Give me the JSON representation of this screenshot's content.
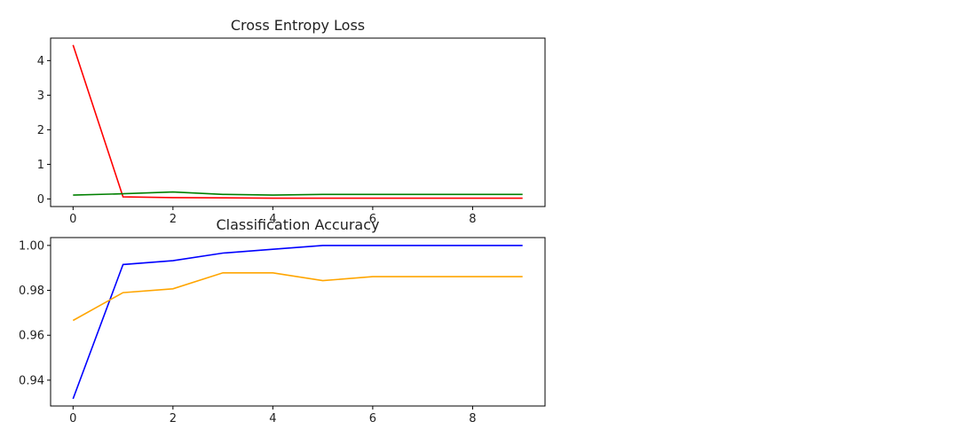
{
  "chart_data": [
    {
      "type": "line",
      "title": "Cross Entropy Loss",
      "xlabel": "",
      "ylabel": "",
      "x": [
        0,
        1,
        2,
        3,
        4,
        5,
        6,
        7,
        8,
        9
      ],
      "xlim": [
        -0.45,
        9.45
      ],
      "ylim": [
        -0.22,
        4.65
      ],
      "xticks": [
        0,
        2,
        4,
        6,
        8
      ],
      "yticks": [
        0,
        1,
        2,
        3,
        4
      ],
      "grid": false,
      "series": [
        {
          "color": "#ff0000",
          "values": [
            4.45,
            0.06,
            0.04,
            0.03,
            0.02,
            0.02,
            0.02,
            0.02,
            0.02,
            0.02
          ]
        },
        {
          "color": "#008000",
          "values": [
            0.11,
            0.15,
            0.2,
            0.13,
            0.11,
            0.13,
            0.13,
            0.13,
            0.13,
            0.13
          ]
        }
      ]
    },
    {
      "type": "line",
      "title": "Classification Accuracy",
      "xlabel": "",
      "ylabel": "",
      "x": [
        0,
        1,
        2,
        3,
        4,
        5,
        6,
        7,
        8,
        9
      ],
      "xlim": [
        -0.45,
        9.45
      ],
      "ylim": [
        0.9285,
        1.0035
      ],
      "xticks": [
        0,
        2,
        4,
        6,
        8
      ],
      "yticks": [
        0.94,
        0.96,
        0.98,
        1.0
      ],
      "ytick_labels": [
        "0.94",
        "0.96",
        "0.98",
        "1.00"
      ],
      "grid": false,
      "series": [
        {
          "color": "#0000ff",
          "values": [
            0.9317,
            0.9915,
            0.9932,
            0.9966,
            0.9983,
            1.0,
            1.0,
            1.0,
            1.0,
            1.0
          ]
        },
        {
          "color": "#ffa500",
          "values": [
            0.9666,
            0.979,
            0.9807,
            0.9878,
            0.9878,
            0.9843,
            0.9861,
            0.9861,
            0.9861,
            0.9861
          ]
        }
      ]
    }
  ]
}
